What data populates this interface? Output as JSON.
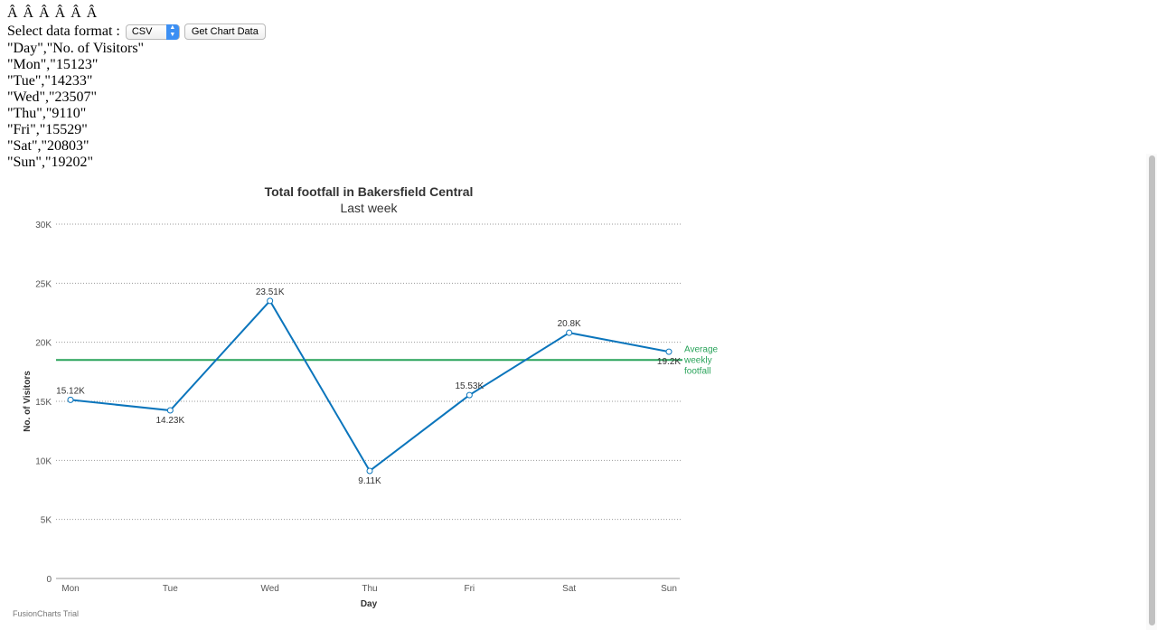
{
  "header": {
    "junk_text": "Â Â  Â Â  Â Â",
    "format_label": "Select data format :",
    "format_selected": "CSV",
    "get_button_label": "Get Chart Data"
  },
  "csv_lines": [
    "\"Day\",\"No. of Visitors\"",
    "\"Mon\",\"15123\"",
    "\"Tue\",\"14233\"",
    "\"Wed\",\"23507\"",
    "\"Thu\",\"9110\"",
    "\"Fri\",\"15529\"",
    "\"Sat\",\"20803\"",
    "\"Sun\",\"19202\""
  ],
  "chart_data": {
    "type": "line",
    "title": "Total footfall in Bakersfield Central",
    "subtitle": "Last week",
    "xlabel": "Day",
    "ylabel": "No. of Visitors",
    "categories": [
      "Mon",
      "Tue",
      "Wed",
      "Thu",
      "Fri",
      "Sat",
      "Sun"
    ],
    "values": [
      15123,
      14233,
      23507,
      9110,
      15529,
      20803,
      19202
    ],
    "value_labels": [
      "15.12K",
      "14.23K",
      "23.51K",
      "9.11K",
      "15.53K",
      "20.8K",
      "19.2K"
    ],
    "ylim": [
      0,
      30000
    ],
    "yticks": [
      0,
      5000,
      10000,
      15000,
      20000,
      25000,
      30000
    ],
    "ytick_labels": [
      "0",
      "5K",
      "10K",
      "15K",
      "20K",
      "25K",
      "30K"
    ],
    "trendline": {
      "value": 18500,
      "label_lines": [
        "Average",
        "weekly",
        "footfall"
      ],
      "color": "#29a35a"
    },
    "line_color": "#0b75bc",
    "grid": true,
    "watermark": "FusionCharts Trial"
  }
}
